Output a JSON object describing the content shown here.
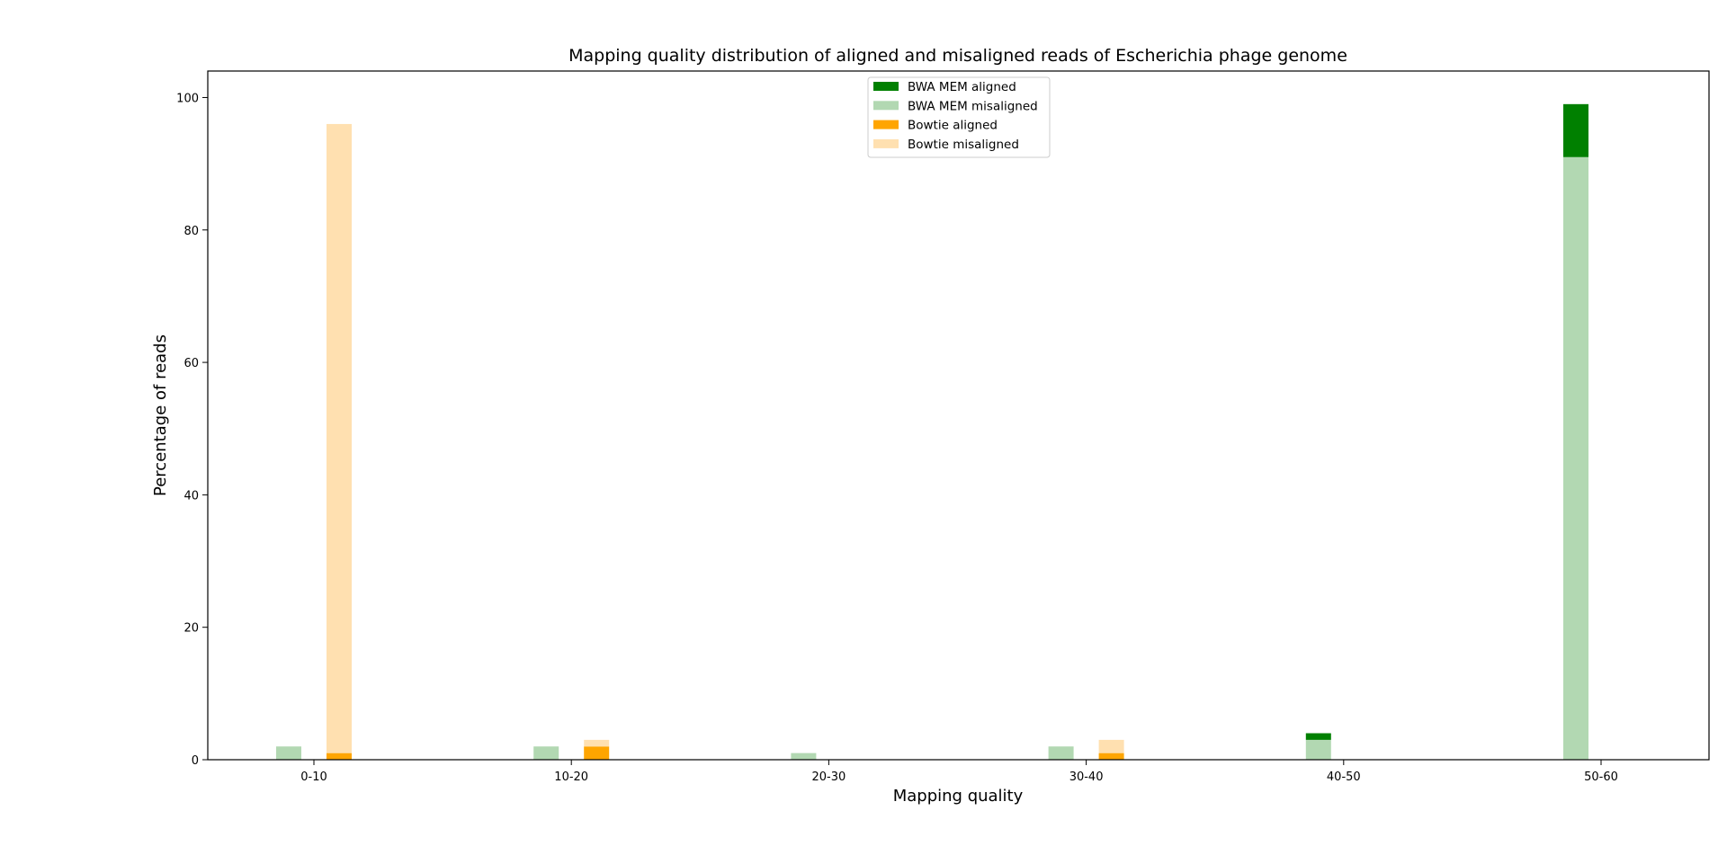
{
  "chart_data": {
    "type": "bar",
    "title": "Mapping quality distribution of aligned and misaligned reads of Escherichia phage genome",
    "xlabel": "Mapping quality",
    "ylabel": "Percentage of reads",
    "categories": [
      "0-10",
      "10-20",
      "20-30",
      "30-40",
      "40-50",
      "50-60"
    ],
    "ylim": [
      0,
      104
    ],
    "yticks": [
      0,
      20,
      40,
      60,
      80,
      100
    ],
    "grid": false,
    "legend_position": "top-center",
    "stacked_groups": [
      {
        "name": "BWA MEM",
        "segments": [
          {
            "name": "BWA MEM misaligned",
            "color": "#b2d8b2",
            "values": [
              2,
              2,
              1,
              2,
              3,
              91
            ]
          },
          {
            "name": "BWA MEM aligned",
            "color": "#008000",
            "values": [
              0,
              0,
              0,
              0,
              1,
              8
            ]
          }
        ]
      },
      {
        "name": "Bowtie",
        "segments": [
          {
            "name": "Bowtie aligned",
            "color": "#ffa500",
            "values": [
              1,
              2,
              0,
              1,
              0,
              0
            ]
          },
          {
            "name": "Bowtie misaligned",
            "color": "#ffe0b0",
            "values": [
              95,
              1,
              0,
              2,
              0,
              0
            ]
          }
        ]
      }
    ],
    "legend": [
      {
        "label": "BWA MEM aligned",
        "color": "#008000"
      },
      {
        "label": "BWA MEM misaligned",
        "color": "#b2d8b2"
      },
      {
        "label": "Bowtie aligned",
        "color": "#ffa500"
      },
      {
        "label": "Bowtie misaligned",
        "color": "#ffe0b0"
      }
    ]
  }
}
